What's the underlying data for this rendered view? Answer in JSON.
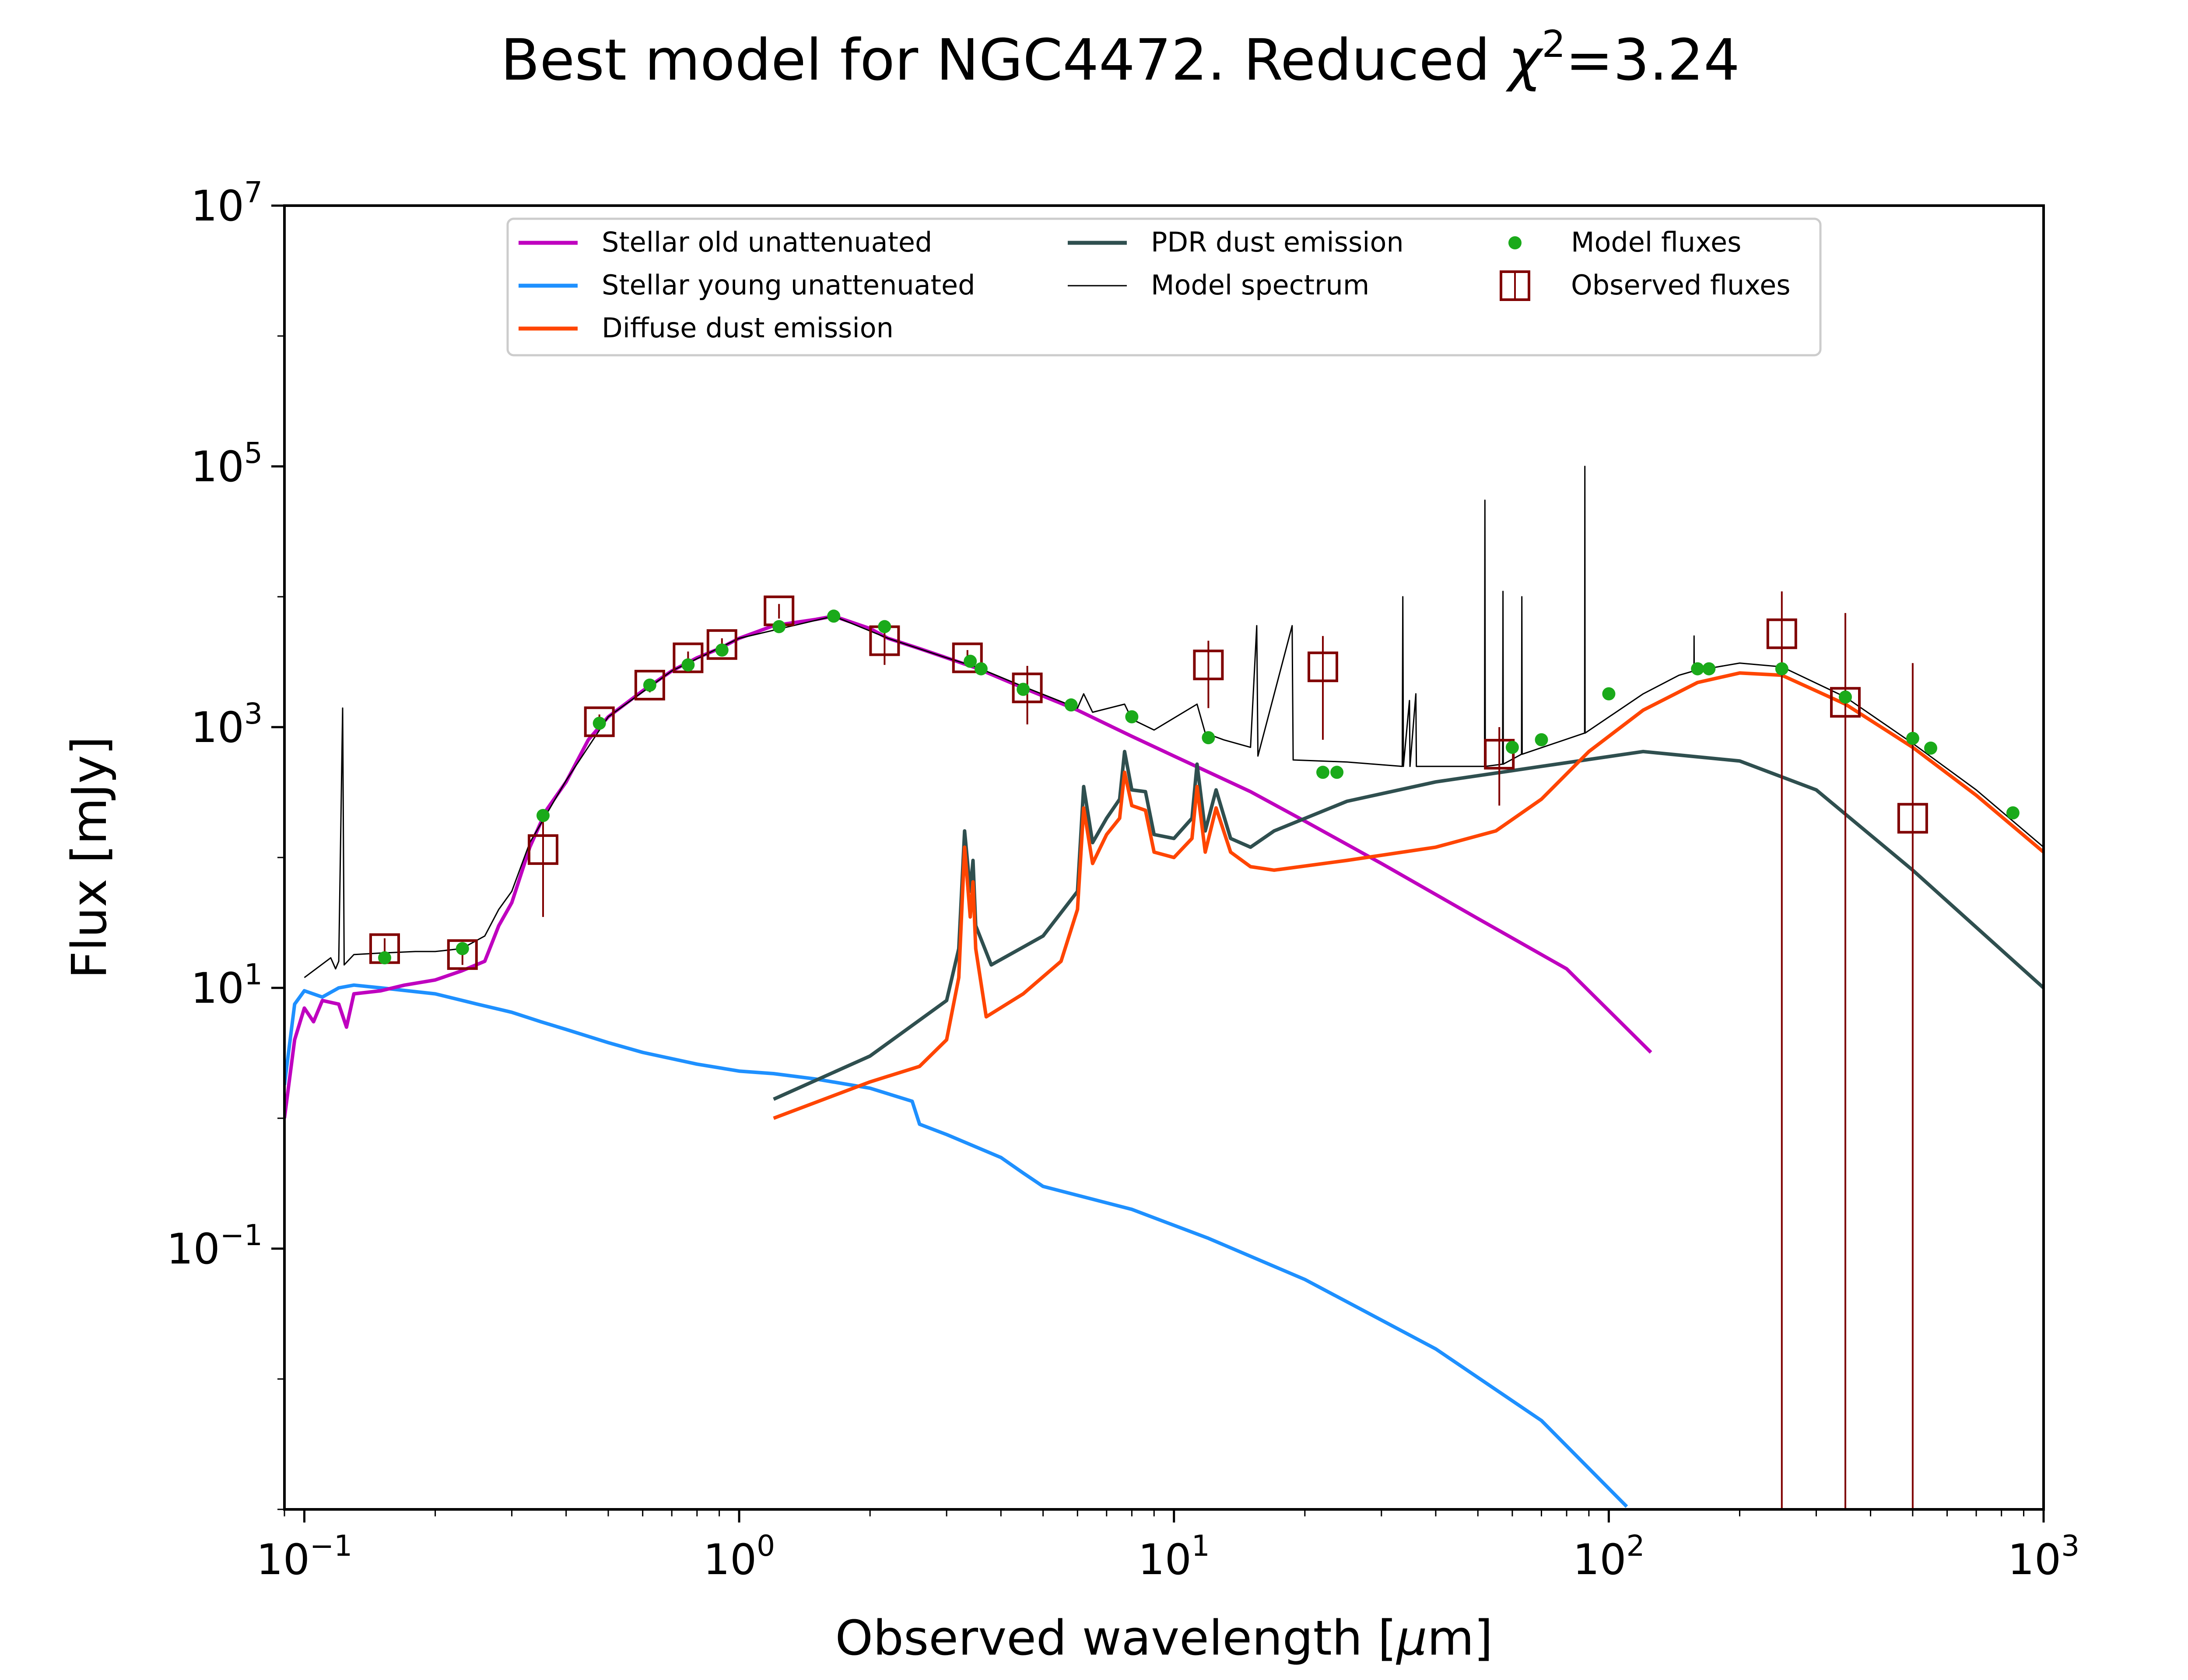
{
  "chart_data": {
    "type": "line",
    "title_prefix": "Best model for NGC4472. Reduced ",
    "title_chi": "χ",
    "title_sup": "2",
    "title_value": "=3.24",
    "xlabel_prefix": "Observed wavelength [",
    "xlabel_mu": "μ",
    "xlabel_suffix": "m]",
    "ylabel": "Flux [mJy]",
    "xscale": "log",
    "yscale": "log",
    "xlim": [
      0.09,
      1000
    ],
    "ylim": [
      0.001,
      10000000
    ],
    "grid": false,
    "legend_position": "top-center",
    "x_ticks": [
      {
        "value": 0.1,
        "base": "10",
        "exp": "−1"
      },
      {
        "value": 1,
        "base": "10",
        "exp": "0"
      },
      {
        "value": 10,
        "base": "10",
        "exp": "1"
      },
      {
        "value": 100,
        "base": "10",
        "exp": "2"
      },
      {
        "value": 1000,
        "base": "10",
        "exp": "3"
      }
    ],
    "y_ticks": [
      {
        "value": 0.1,
        "base": "10",
        "exp": "−1"
      },
      {
        "value": 10,
        "base": "10",
        "exp": "1"
      },
      {
        "value": 1000,
        "base": "10",
        "exp": "3"
      },
      {
        "value": 100000,
        "base": "10",
        "exp": "5"
      },
      {
        "value": 10000000,
        "base": "10",
        "exp": "7"
      }
    ],
    "legend": {
      "old": "Stellar old unattenuated",
      "young": "Stellar young unattenuated",
      "diffuse": "Diffuse dust emission",
      "pdr": "PDR dust emission",
      "spectrum": "Model spectrum",
      "model_fluxes": "Model fluxes",
      "observed": "Observed fluxes"
    },
    "colors": {
      "old": "#bf00bf",
      "young": "#1e90ff",
      "diffuse": "#ff4500",
      "pdr": "#2f4f4f",
      "spectrum": "#000000",
      "model_fluxes": "#1aaa1a",
      "observed": "#800000"
    },
    "series": [
      {
        "key": "old",
        "points": [
          [
            0.09,
            1.0
          ],
          [
            0.095,
            4.0
          ],
          [
            0.1,
            7.0
          ],
          [
            0.105,
            5.5
          ],
          [
            0.11,
            8.0
          ],
          [
            0.12,
            7.5
          ],
          [
            0.125,
            5.0
          ],
          [
            0.13,
            9.0
          ],
          [
            0.15,
            9.5
          ],
          [
            0.17,
            10.5
          ],
          [
            0.2,
            11.5
          ],
          [
            0.23,
            13.5
          ],
          [
            0.26,
            16.0
          ],
          [
            0.28,
            30.0
          ],
          [
            0.3,
            45.0
          ],
          [
            0.33,
            120.0
          ],
          [
            0.36,
            230.0
          ],
          [
            0.4,
            380.0
          ],
          [
            0.45,
            800.0
          ],
          [
            0.5,
            1200.0
          ],
          [
            0.6,
            1900.0
          ],
          [
            0.7,
            2700.0
          ],
          [
            0.8,
            3400.0
          ],
          [
            0.9,
            4000.0
          ],
          [
            1.0,
            4800.0
          ],
          [
            1.2,
            6000.0
          ],
          [
            1.5,
            6700.0
          ],
          [
            1.65,
            7100.0
          ],
          [
            2.0,
            5700.0
          ],
          [
            2.2,
            4800.0
          ],
          [
            2.6,
            4000.0
          ],
          [
            3.0,
            3400.0
          ],
          [
            3.5,
            2850.0
          ],
          [
            4.5,
            2000.0
          ],
          [
            6.0,
            1350.0
          ],
          [
            8.0,
            850.0
          ],
          [
            10.0,
            600.0
          ],
          [
            15.0,
            320.0
          ],
          [
            20.0,
            190.0
          ],
          [
            30.0,
            90.0
          ],
          [
            50.0,
            34.0
          ],
          [
            80.0,
            14.0
          ],
          [
            125.0,
            3.2
          ]
        ]
      },
      {
        "key": "young",
        "points": [
          [
            0.09,
            1.8
          ],
          [
            0.095,
            7.5
          ],
          [
            0.1,
            9.5
          ],
          [
            0.11,
            8.5
          ],
          [
            0.12,
            10.0
          ],
          [
            0.13,
            10.5
          ],
          [
            0.15,
            10.0
          ],
          [
            0.2,
            9.0
          ],
          [
            0.25,
            7.5
          ],
          [
            0.3,
            6.5
          ],
          [
            0.35,
            5.5
          ],
          [
            0.4,
            4.8
          ],
          [
            0.5,
            3.8
          ],
          [
            0.6,
            3.2
          ],
          [
            0.8,
            2.6
          ],
          [
            1.0,
            2.3
          ],
          [
            1.2,
            2.2
          ],
          [
            1.5,
            2.0
          ],
          [
            2.0,
            1.7
          ],
          [
            2.5,
            1.35
          ],
          [
            2.6,
            0.9
          ],
          [
            3.0,
            0.75
          ],
          [
            4.0,
            0.5
          ],
          [
            4.5,
            0.38
          ],
          [
            5.0,
            0.3
          ],
          [
            8.0,
            0.2
          ],
          [
            12.0,
            0.12
          ],
          [
            20.0,
            0.058
          ],
          [
            40.0,
            0.017
          ],
          [
            70.0,
            0.0048
          ],
          [
            110.0,
            0.00105
          ]
        ]
      },
      {
        "key": "diffuse",
        "points": [
          [
            1.2,
            1.0
          ],
          [
            2.0,
            1.9
          ],
          [
            2.6,
            2.5
          ],
          [
            3.0,
            4.0
          ],
          [
            3.2,
            12.0
          ],
          [
            3.3,
            120.0
          ],
          [
            3.4,
            35.0
          ],
          [
            3.45,
            65.0
          ],
          [
            3.5,
            20.0
          ],
          [
            3.7,
            6.0
          ],
          [
            4.5,
            9.0
          ],
          [
            5.5,
            16.0
          ],
          [
            6.0,
            40.0
          ],
          [
            6.2,
            240.0
          ],
          [
            6.5,
            90.0
          ],
          [
            7.0,
            150.0
          ],
          [
            7.5,
            200.0
          ],
          [
            7.7,
            450.0
          ],
          [
            8.0,
            250.0
          ],
          [
            8.6,
            230.0
          ],
          [
            9.0,
            110.0
          ],
          [
            10.0,
            100.0
          ],
          [
            11.0,
            140.0
          ],
          [
            11.3,
            350.0
          ],
          [
            11.8,
            110.0
          ],
          [
            12.5,
            240.0
          ],
          [
            13.5,
            110.0
          ],
          [
            15.0,
            85.0
          ],
          [
            17.0,
            80.0
          ],
          [
            25.0,
            95.0
          ],
          [
            40.0,
            120.0
          ],
          [
            55.0,
            160.0
          ],
          [
            70.0,
            280.0
          ],
          [
            90.0,
            650.0
          ],
          [
            120.0,
            1350.0
          ],
          [
            160.0,
            2200.0
          ],
          [
            200.0,
            2600.0
          ],
          [
            250.0,
            2500.0
          ],
          [
            350.0,
            1500.0
          ],
          [
            500.0,
            700.0
          ],
          [
            700.0,
            300.0
          ],
          [
            1000.0,
            110.0
          ]
        ]
      },
      {
        "key": "pdr",
        "points": [
          [
            1.2,
            1.4
          ],
          [
            2.0,
            3.0
          ],
          [
            3.0,
            8.0
          ],
          [
            3.2,
            20.0
          ],
          [
            3.3,
            160.0
          ],
          [
            3.4,
            55.0
          ],
          [
            3.45,
            95.0
          ],
          [
            3.5,
            30.0
          ],
          [
            3.8,
            15.0
          ],
          [
            5.0,
            25.0
          ],
          [
            6.0,
            55.0
          ],
          [
            6.2,
            350.0
          ],
          [
            6.5,
            130.0
          ],
          [
            7.0,
            200.0
          ],
          [
            7.5,
            280.0
          ],
          [
            7.7,
            650.0
          ],
          [
            8.0,
            330.0
          ],
          [
            8.6,
            320.0
          ],
          [
            9.0,
            150.0
          ],
          [
            10.0,
            140.0
          ],
          [
            11.0,
            200.0
          ],
          [
            11.3,
            520.0
          ],
          [
            11.8,
            160.0
          ],
          [
            12.5,
            330.0
          ],
          [
            13.5,
            140.0
          ],
          [
            15.0,
            120.0
          ],
          [
            17.0,
            160.0
          ],
          [
            25.0,
            270.0
          ],
          [
            40.0,
            380.0
          ],
          [
            70.0,
            500.0
          ],
          [
            120.0,
            650.0
          ],
          [
            200.0,
            550.0
          ],
          [
            300.0,
            330.0
          ],
          [
            500.0,
            80.0
          ],
          [
            1000.0,
            10.0
          ]
        ]
      },
      {
        "key": "spectrum",
        "points": [
          [
            0.1,
            12.0
          ],
          [
            0.115,
            17.0
          ],
          [
            0.118,
            14.0
          ],
          [
            0.12,
            16.0
          ],
          [
            0.1225,
            1400.0
          ],
          [
            0.1235,
            15.0
          ],
          [
            0.13,
            18.0
          ],
          [
            0.15,
            18.5
          ],
          [
            0.18,
            19.0
          ],
          [
            0.2,
            19.0
          ],
          [
            0.23,
            20.0
          ],
          [
            0.26,
            25.0
          ],
          [
            0.28,
            40.0
          ],
          [
            0.3,
            55.0
          ],
          [
            0.33,
            130.0
          ],
          [
            0.4,
            390.0
          ],
          [
            0.5,
            1200.0
          ],
          [
            0.7,
            2700.0
          ],
          [
            1.0,
            4800.0
          ],
          [
            1.65,
            7100.0
          ],
          [
            2.2,
            4800.0
          ],
          [
            3.0,
            3400.0
          ],
          [
            3.5,
            2900.0
          ],
          [
            4.5,
            2050.0
          ],
          [
            6.0,
            1400.0
          ],
          [
            6.2,
            1800.0
          ],
          [
            6.5,
            1300.0
          ],
          [
            7.7,
            1500.0
          ],
          [
            8.0,
            1150.0
          ],
          [
            9.0,
            950.0
          ],
          [
            11.3,
            1500.0
          ],
          [
            11.8,
            900.0
          ],
          [
            13.0,
            800.0
          ],
          [
            15.0,
            700.0
          ],
          [
            15.5,
            6000.0
          ],
          [
            15.6,
            600.0
          ],
          [
            18.7,
            6000.0
          ],
          [
            18.8,
            560.0
          ],
          [
            25.0,
            540.0
          ],
          [
            33.5,
            500.0
          ],
          [
            33.6,
            10000.0
          ],
          [
            33.7,
            500.0
          ],
          [
            34.8,
            1600.0
          ],
          [
            34.9,
            500.0
          ],
          [
            36.0,
            1800.0
          ],
          [
            36.1,
            500.0
          ],
          [
            40.0,
            500.0
          ],
          [
            51.8,
            500.0
          ],
          [
            51.9,
            55000.0
          ],
          [
            52.0,
            500.0
          ],
          [
            57.0,
            520.0
          ],
          [
            57.1,
            11000.0
          ],
          [
            57.2,
            520.0
          ],
          [
            63.0,
            620.0
          ],
          [
            63.1,
            10000.0
          ],
          [
            63.2,
            620.0
          ],
          [
            88.0,
            900.0
          ],
          [
            88.1,
            100000.0
          ],
          [
            88.2,
            900.0
          ],
          [
            120.0,
            1800.0
          ],
          [
            145.0,
            2500.0
          ],
          [
            157.0,
            2700.0
          ],
          [
            157.1,
            5000.0
          ],
          [
            157.2,
            2700.0
          ],
          [
            200.0,
            3100.0
          ],
          [
            250.0,
            2900.0
          ],
          [
            350.0,
            1700.0
          ],
          [
            500.0,
            750.0
          ],
          [
            700.0,
            330.0
          ],
          [
            1000.0,
            120.0
          ]
        ]
      }
    ],
    "model_fluxes": [
      [
        0.153,
        17.0
      ],
      [
        0.231,
        20.0
      ],
      [
        0.354,
        210.0
      ],
      [
        0.477,
        1070.0
      ],
      [
        0.623,
        2100.0
      ],
      [
        0.763,
        3000.0
      ],
      [
        0.913,
        3900.0
      ],
      [
        1.235,
        5900.0
      ],
      [
        1.65,
        7100.0
      ],
      [
        2.16,
        5900.0
      ],
      [
        3.4,
        3200.0
      ],
      [
        3.6,
        2800.0
      ],
      [
        4.5,
        1950.0
      ],
      [
        5.8,
        1480.0
      ],
      [
        8.0,
        1200.0
      ],
      [
        12.0,
        830.0
      ],
      [
        22.0,
        450.0
      ],
      [
        23.7,
        450.0
      ],
      [
        60.0,
        700.0
      ],
      [
        70.0,
        800.0
      ],
      [
        100.0,
        1800.0
      ],
      [
        160.0,
        2800.0
      ],
      [
        170.0,
        2800.0
      ],
      [
        250.0,
        2800.0
      ],
      [
        350.0,
        1700.0
      ],
      [
        500.0,
        820.0
      ],
      [
        550.0,
        690.0
      ],
      [
        850.0,
        220.0
      ]
    ],
    "observed_fluxes": [
      {
        "x": 0.153,
        "y": 20.0,
        "lo": 16.0,
        "hi": 24.0
      },
      {
        "x": 0.231,
        "y": 18.0,
        "lo": 15.0,
        "hi": 22.0
      },
      {
        "x": 0.354,
        "y": 115.0,
        "lo": 35.0,
        "hi": 210.0
      },
      {
        "x": 0.477,
        "y": 1100.0,
        "lo": 950.0,
        "hi": 1250.0
      },
      {
        "x": 0.623,
        "y": 2100.0,
        "lo": 1850.0,
        "hi": 2350.0
      },
      {
        "x": 0.763,
        "y": 3400.0,
        "lo": 3000.0,
        "hi": 3800.0
      },
      {
        "x": 0.913,
        "y": 4300.0,
        "lo": 3800.0,
        "hi": 4800.0
      },
      {
        "x": 1.235,
        "y": 7800.0,
        "lo": 6800.0,
        "hi": 8800.0
      },
      {
        "x": 2.16,
        "y": 4600.0,
        "lo": 3000.0,
        "hi": 6200.0
      },
      {
        "x": 3.35,
        "y": 3400.0,
        "lo": 2900.0,
        "hi": 3900.0
      },
      {
        "x": 4.6,
        "y": 2000.0,
        "lo": 1050.0,
        "hi": 2950.0
      },
      {
        "x": 12.0,
        "y": 3000.0,
        "lo": 1400.0,
        "hi": 4600.0
      },
      {
        "x": 22.0,
        "y": 2900.0,
        "lo": 800.0,
        "hi": 5000.0
      },
      {
        "x": 56.0,
        "y": 620.0,
        "lo": 250.0,
        "hi": 1000.0
      },
      {
        "x": 250.0,
        "y": 5200.0,
        "lo": 0.001,
        "hi": 11000.0
      },
      {
        "x": 350.0,
        "y": 1550.0,
        "lo": 0.001,
        "hi": 7500.0
      },
      {
        "x": 500.0,
        "y": 200.0,
        "lo": 0.001,
        "hi": 3100.0
      }
    ]
  }
}
